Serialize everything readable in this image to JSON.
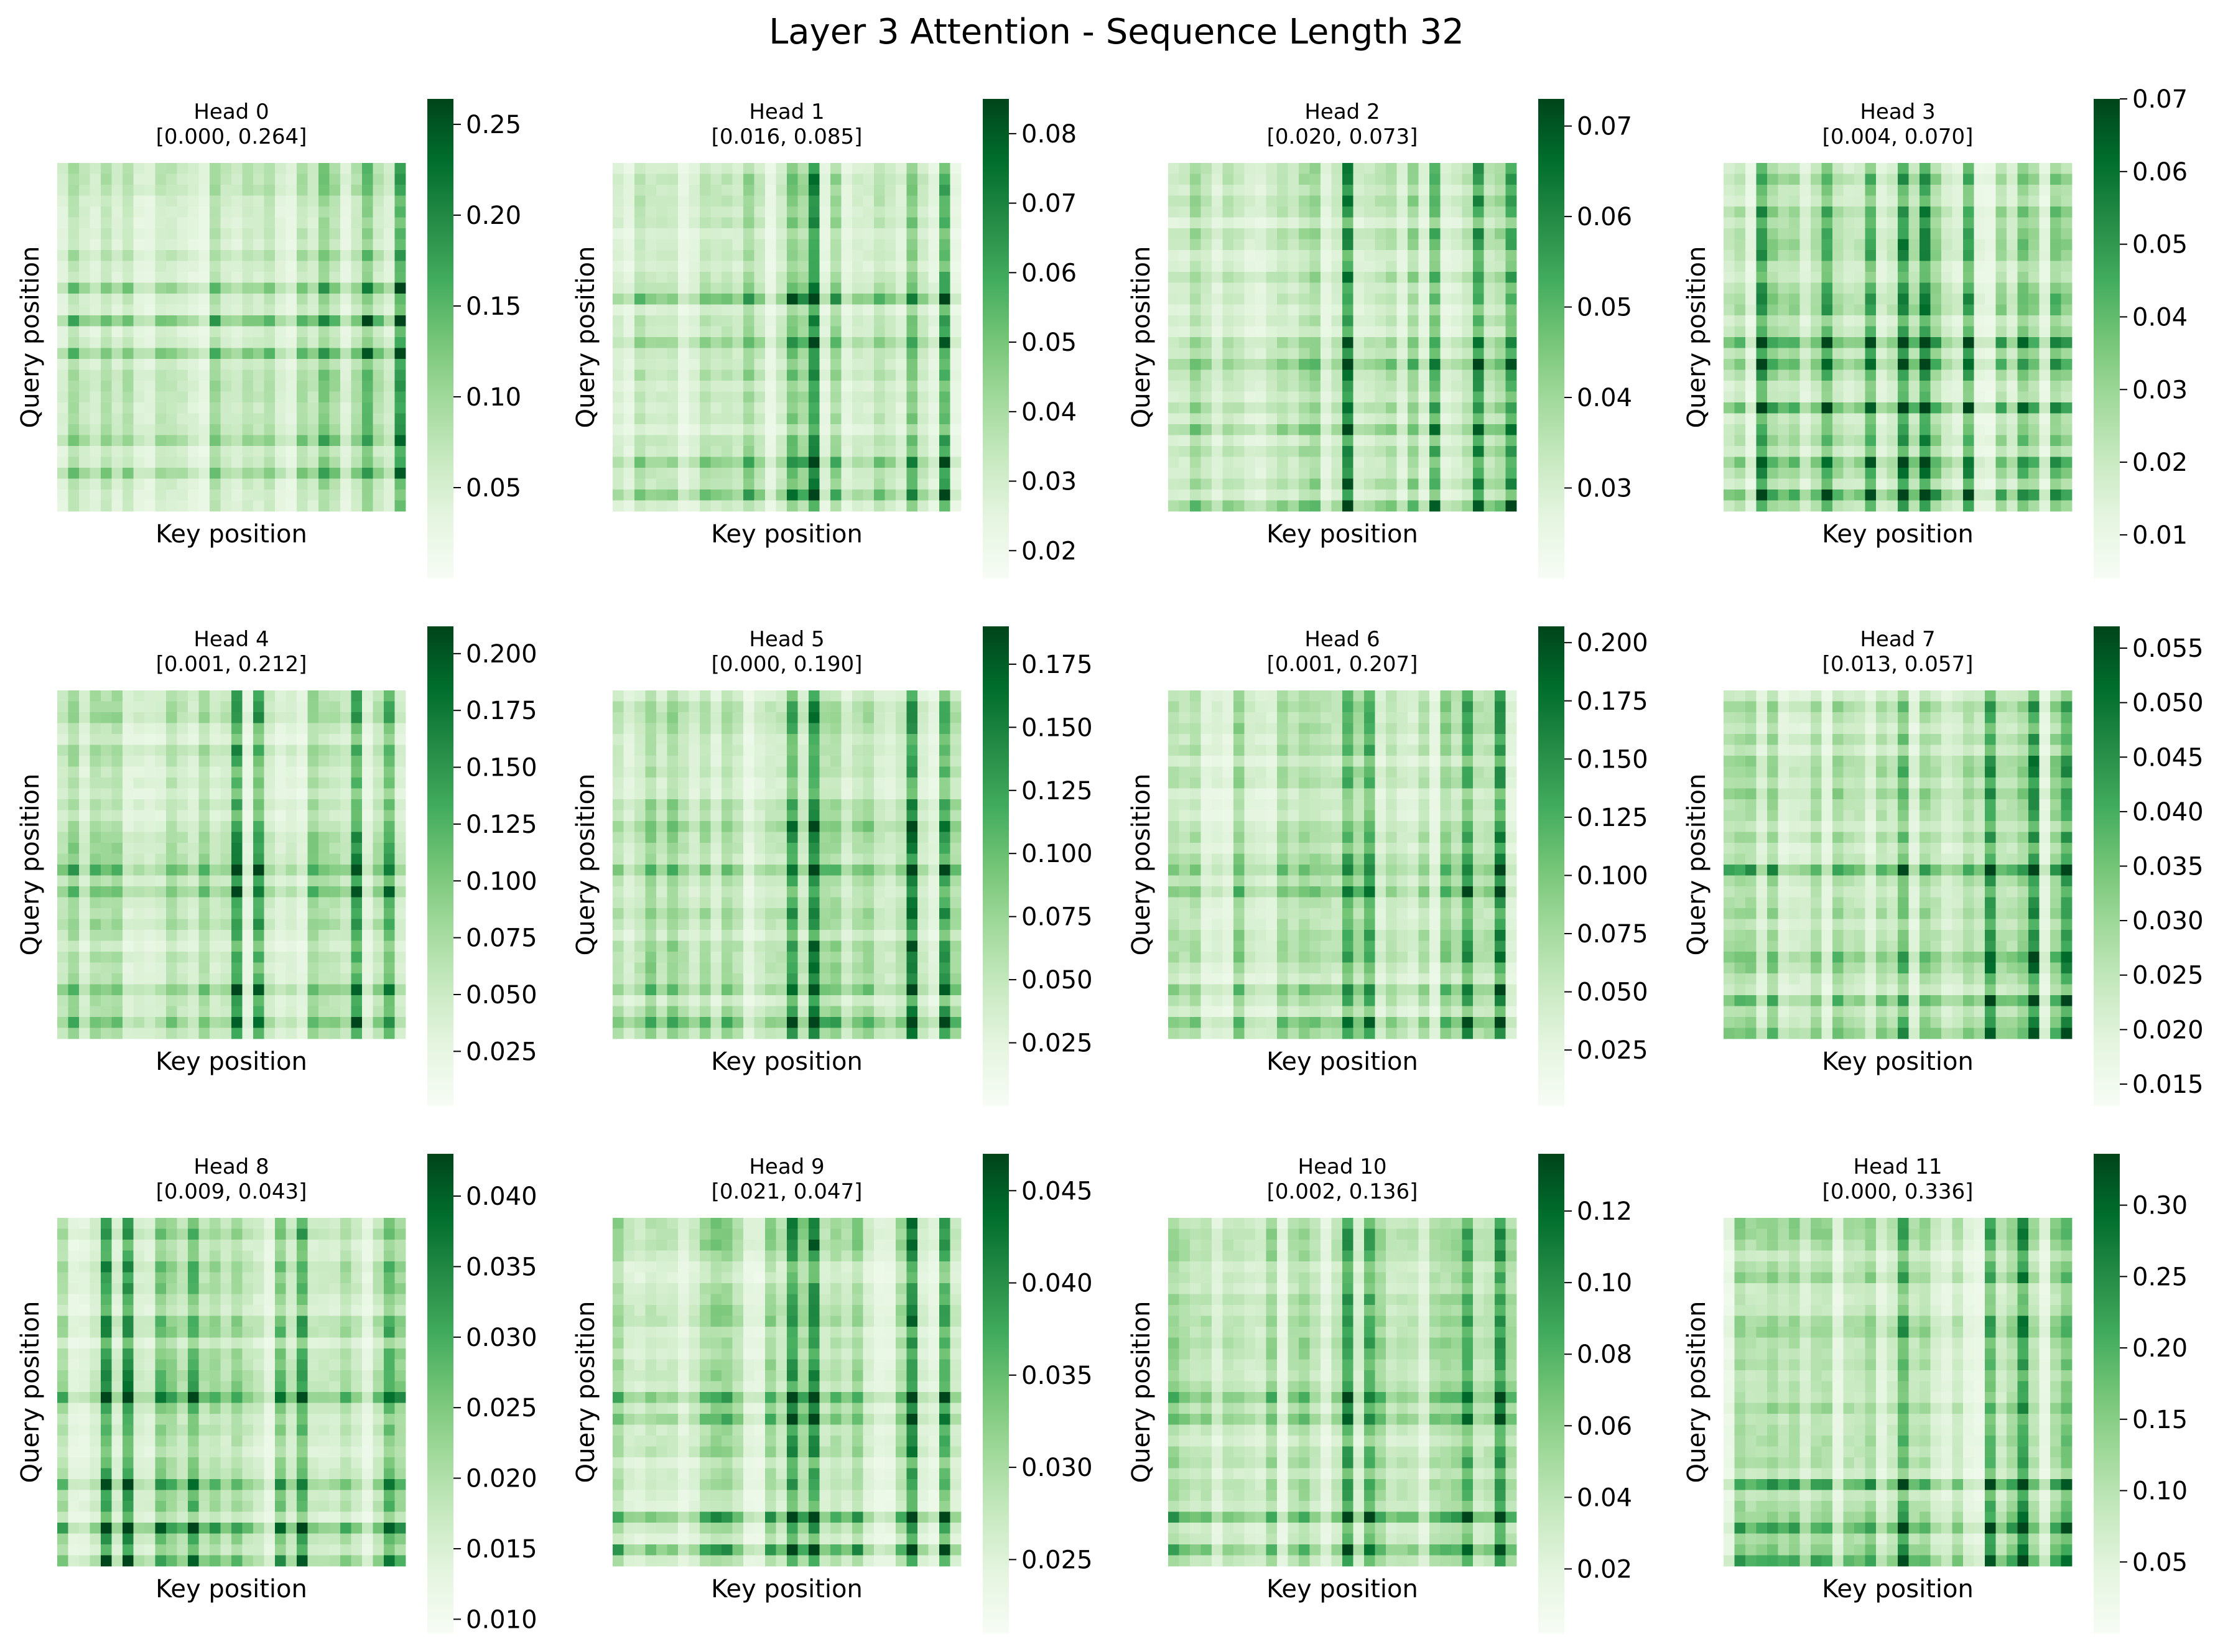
{
  "title": "Layer 3 Attention - Sequence Length 32",
  "colormap": {
    "name": "Greens",
    "stops": [
      "#f7fcf5",
      "#e5f5e0",
      "#c7e9c0",
      "#a1d99b",
      "#74c476",
      "#41ab5d",
      "#238b45",
      "#006d2c",
      "#00441b"
    ]
  },
  "chart_data": [
    {
      "type": "heatmap",
      "title": "Head 0",
      "range_label": "[0.000, 0.264]",
      "xlabel": "Key position",
      "ylabel": "Query position",
      "vmin": 0.0,
      "vmax": 0.264,
      "colorbar_ticks": [
        "0.05",
        "0.10",
        "0.15",
        "0.20",
        "0.25"
      ],
      "size": 32,
      "hot_keys": [
        24,
        31,
        28
      ],
      "hot_queries": [
        17,
        25,
        28,
        11,
        14
      ]
    },
    {
      "type": "heatmap",
      "title": "Head 1",
      "range_label": "[0.016, 0.085]",
      "xlabel": "Key position",
      "ylabel": "Query position",
      "vmin": 0.016,
      "vmax": 0.085,
      "colorbar_ticks": [
        "0.02",
        "0.03",
        "0.04",
        "0.05",
        "0.06",
        "0.07",
        "0.08"
      ],
      "size": 32,
      "hot_keys": [
        16,
        18,
        27,
        30
      ],
      "hot_queries": [
        16,
        27,
        30,
        12
      ]
    },
    {
      "type": "heatmap",
      "title": "Head 2",
      "range_label": "[0.020, 0.073]",
      "xlabel": "Key position",
      "ylabel": "Query position",
      "vmin": 0.02,
      "vmax": 0.073,
      "colorbar_ticks": [
        "0.03",
        "0.04",
        "0.05",
        "0.06",
        "0.07"
      ],
      "size": 32,
      "hot_keys": [
        24,
        31,
        28,
        16
      ],
      "hot_queries": [
        24,
        31,
        18
      ]
    },
    {
      "type": "heatmap",
      "title": "Head 3",
      "range_label": "[0.004, 0.070]",
      "xlabel": "Key position",
      "ylabel": "Query position",
      "vmin": 0.004,
      "vmax": 0.07,
      "colorbar_ticks": [
        "0.01",
        "0.02",
        "0.03",
        "0.04",
        "0.05",
        "0.06",
        "0.07"
      ],
      "size": 32,
      "hot_keys": [
        16,
        18,
        27,
        30,
        3,
        9,
        13,
        22
      ],
      "hot_queries": [
        16,
        27,
        30,
        18,
        22
      ]
    },
    {
      "type": "heatmap",
      "title": "Head 4",
      "range_label": "[0.001, 0.212]",
      "xlabel": "Key position",
      "ylabel": "Query position",
      "vmin": 0.001,
      "vmax": 0.212,
      "colorbar_ticks": [
        "0.025",
        "0.050",
        "0.075",
        "0.100",
        "0.125",
        "0.150",
        "0.175",
        "0.200"
      ],
      "size": 32,
      "hot_keys": [
        16,
        18,
        27,
        30
      ],
      "hot_queries": [
        16,
        27,
        30,
        18
      ]
    },
    {
      "type": "heatmap",
      "title": "Head 5",
      "range_label": "[0.000, 0.190]",
      "xlabel": "Key position",
      "ylabel": "Query position",
      "vmin": 0.0,
      "vmax": 0.19,
      "colorbar_ticks": [
        "0.025",
        "0.050",
        "0.075",
        "0.100",
        "0.125",
        "0.150",
        "0.175"
      ],
      "size": 32,
      "hot_keys": [
        16,
        18,
        27,
        30
      ],
      "hot_queries": [
        16,
        27,
        30,
        12
      ]
    },
    {
      "type": "heatmap",
      "title": "Head 6",
      "range_label": "[0.001, 0.207]",
      "xlabel": "Key position",
      "ylabel": "Query position",
      "vmin": 0.001,
      "vmax": 0.207,
      "colorbar_ticks": [
        "0.025",
        "0.050",
        "0.075",
        "0.100",
        "0.125",
        "0.150",
        "0.175",
        "0.200"
      ],
      "size": 32,
      "hot_keys": [
        16,
        18,
        27,
        30
      ],
      "hot_queries": [
        16,
        27,
        30,
        18
      ]
    },
    {
      "type": "heatmap",
      "title": "Head 7",
      "range_label": "[0.013, 0.057]",
      "xlabel": "Key position",
      "ylabel": "Query position",
      "vmin": 0.013,
      "vmax": 0.057,
      "colorbar_ticks": [
        "0.015",
        "0.020",
        "0.025",
        "0.030",
        "0.035",
        "0.040",
        "0.045",
        "0.050",
        "0.055"
      ],
      "size": 32,
      "hot_keys": [
        24,
        31,
        28,
        16
      ],
      "hot_queries": [
        24,
        31,
        28,
        16
      ]
    },
    {
      "type": "heatmap",
      "title": "Head 8",
      "range_label": "[0.009, 0.043]",
      "xlabel": "Key position",
      "ylabel": "Query position",
      "vmin": 0.009,
      "vmax": 0.043,
      "colorbar_ticks": [
        "0.010",
        "0.015",
        "0.020",
        "0.025",
        "0.030",
        "0.035",
        "0.040"
      ],
      "size": 32,
      "hot_keys": [
        4,
        6,
        9,
        12,
        20,
        22,
        30
      ],
      "hot_queries": [
        24,
        31,
        28,
        16
      ]
    },
    {
      "type": "heatmap",
      "title": "Head 9",
      "range_label": "[0.021, 0.047]",
      "xlabel": "Key position",
      "ylabel": "Query position",
      "vmin": 0.021,
      "vmax": 0.047,
      "colorbar_ticks": [
        "0.025",
        "0.030",
        "0.035",
        "0.040",
        "0.045"
      ],
      "size": 32,
      "hot_keys": [
        16,
        18,
        27,
        30
      ],
      "hot_queries": [
        16,
        27,
        30,
        18
      ]
    },
    {
      "type": "heatmap",
      "title": "Head 10",
      "range_label": "[0.002, 0.136]",
      "xlabel": "Key position",
      "ylabel": "Query position",
      "vmin": 0.002,
      "vmax": 0.136,
      "colorbar_ticks": [
        "0.02",
        "0.04",
        "0.06",
        "0.08",
        "0.10",
        "0.12"
      ],
      "size": 32,
      "hot_keys": [
        16,
        18,
        27,
        30
      ],
      "hot_queries": [
        16,
        27,
        30,
        18
      ]
    },
    {
      "type": "heatmap",
      "title": "Head 11",
      "range_label": "[0.000, 0.336]",
      "xlabel": "Key position",
      "ylabel": "Query position",
      "vmin": 0.0,
      "vmax": 0.336,
      "colorbar_ticks": [
        "0.05",
        "0.10",
        "0.15",
        "0.20",
        "0.25",
        "0.30"
      ],
      "size": 32,
      "hot_keys": [
        24,
        31,
        16,
        27
      ],
      "hot_queries": [
        24,
        31,
        28
      ]
    }
  ]
}
